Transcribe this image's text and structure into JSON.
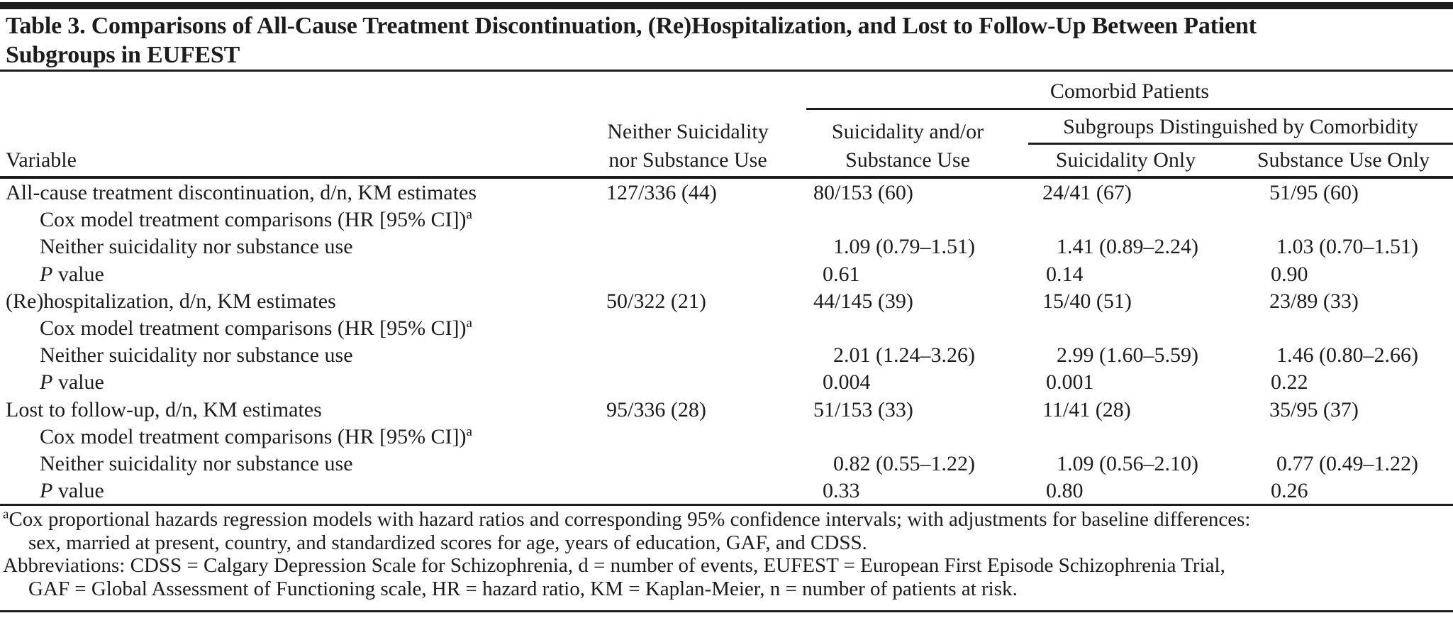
{
  "table": {
    "title_line1": "Table 3. Comparisons of All-Cause Treatment Discontinuation, (Re)Hospitalization, and Lost to Follow-Up Between Patient",
    "title_line2": "Subgroups in EUFEST",
    "header": {
      "variable": "Variable",
      "neither_line1": "Neither Suicidality",
      "neither_line2": "nor Substance Use",
      "comorbid": "Comorbid Patients",
      "suic_subst_line1": "Suicidality and/or",
      "suic_subst_line2": "Substance Use",
      "subgroups": "Subgroups Distinguished by Comorbidity",
      "suicidality_only": "Suicidality Only",
      "substance_only": "Substance Use Only"
    },
    "rows": [
      {
        "label": "All-cause treatment discontinuation, d/n, KM estimates",
        "cells": [
          "127/336 (44)",
          "80/153 (60)",
          "24/41 (67)",
          "51/95 (60)"
        ]
      },
      {
        "label": "Cox model treatment comparisons (HR [95% CI])",
        "sup": "a",
        "cells": [
          "",
          "",
          "",
          ""
        ]
      },
      {
        "label": "Neither suicidality nor substance use",
        "cells": [
          "",
          "1.09 (0.79–1.51)",
          "1.41 (0.89–2.24)",
          "1.03 (0.70–1.51)"
        ]
      },
      {
        "label_italic": "P",
        "label_rest": " value",
        "cells": [
          "",
          "0.61",
          "0.14",
          "0.90"
        ]
      },
      {
        "label": "(Re)hospitalization, d/n, KM estimates",
        "cells": [
          "50/322 (21)",
          "44/145 (39)",
          "15/40 (51)",
          "23/89 (33)"
        ]
      },
      {
        "label": "Cox model treatment comparisons (HR [95% CI])",
        "sup": "a",
        "cells": [
          "",
          "",
          "",
          ""
        ]
      },
      {
        "label": "Neither suicidality nor substance use",
        "cells": [
          "",
          "2.01 (1.24–3.26)",
          "2.99 (1.60–5.59)",
          "1.46 (0.80–2.66)"
        ]
      },
      {
        "label_italic": "P",
        "label_rest": " value",
        "cells": [
          "",
          "0.004",
          "0.001",
          "0.22"
        ]
      },
      {
        "label": "Lost to follow-up, d/n, KM estimates",
        "cells": [
          "95/336 (28)",
          "51/153 (33)",
          "11/41 (28)",
          "35/95 (37)"
        ]
      },
      {
        "label": "Cox model treatment comparisons (HR [95% CI])",
        "sup": "a",
        "cells": [
          "",
          "",
          "",
          ""
        ]
      },
      {
        "label": "Neither suicidality nor substance use",
        "cells": [
          "",
          "0.82 (0.55–1.22)",
          "1.09 (0.56–2.10)",
          "0.77 (0.49–1.22)"
        ]
      },
      {
        "label_italic": "P",
        "label_rest": " value",
        "cells": [
          "",
          "0.33",
          "0.80",
          "0.26"
        ]
      }
    ],
    "footnotes": {
      "a_sup": "a",
      "a_line1": "Cox proportional hazards regression models with hazard ratios and corresponding 95% confidence intervals; with adjustments for baseline differences:",
      "a_line2": "sex, married at present, country, and standardized scores for age, years of education, GAF, and CDSS.",
      "abbr_line1": "Abbreviations: CDSS = Calgary Depression Scale for Schizophrenia, d = number of events, EUFEST = European First Episode Schizophrenia Trial,",
      "abbr_line2": "GAF = Global Assessment of Functioning scale, HR = hazard ratio, KM = Kaplan-Meier, n = number of patients at risk."
    }
  }
}
